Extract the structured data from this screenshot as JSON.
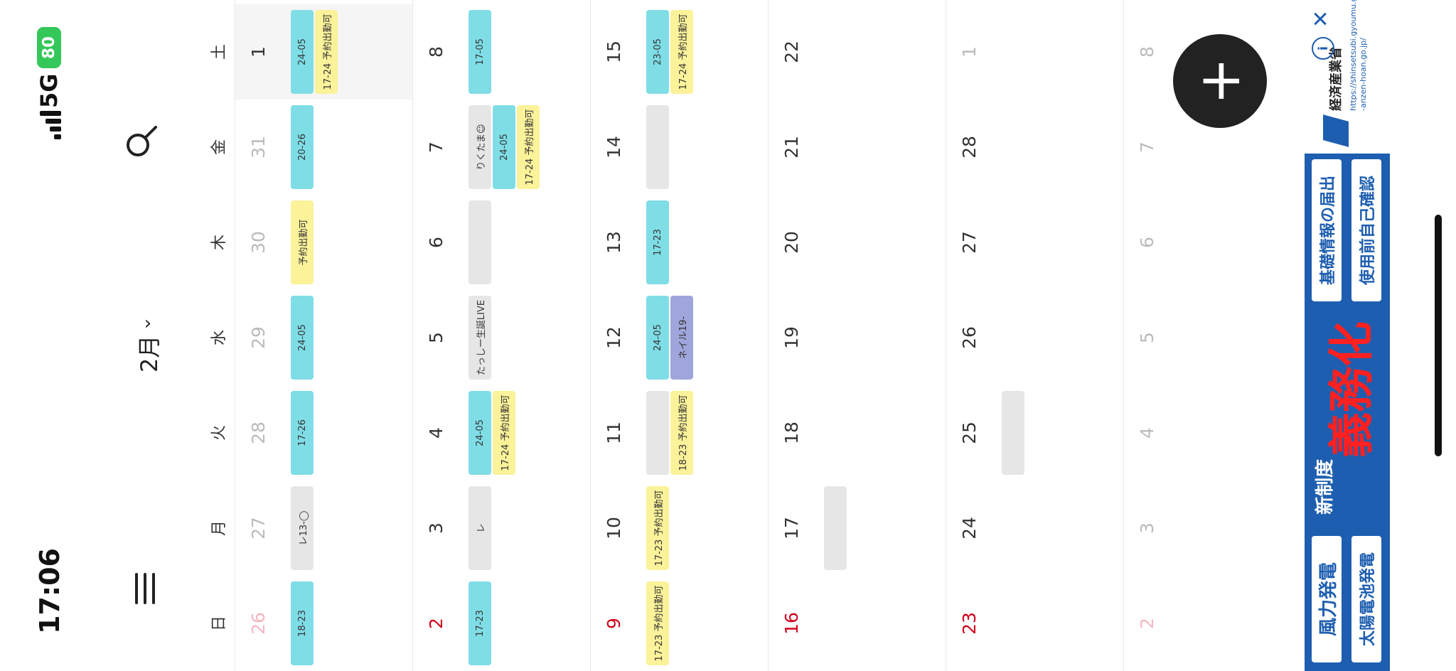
{
  "status": {
    "time": "17:06",
    "network": "5G",
    "battery": "80"
  },
  "header": {
    "month": "2月",
    "chevron": "›"
  },
  "weekdays": [
    "日",
    "月",
    "火",
    "水",
    "木",
    "金",
    "土"
  ],
  "weeks": [
    {
      "days": [
        {
          "d": "26",
          "faded": true,
          "sun": true,
          "events": [
            {
              "t": "18-23",
              "c": "cyan"
            }
          ]
        },
        {
          "d": "27",
          "faded": true,
          "events": [
            {
              "t": "レ13-◯",
              "c": "gray"
            }
          ]
        },
        {
          "d": "28",
          "faded": true,
          "events": [
            {
              "t": "17-26",
              "c": "cyan"
            }
          ]
        },
        {
          "d": "29",
          "faded": true,
          "events": [
            {
              "t": "24-05",
              "c": "cyan"
            }
          ]
        },
        {
          "d": "30",
          "faded": true,
          "events": [
            {
              "t": "予約出勤可",
              "c": "yellow"
            }
          ]
        },
        {
          "d": "31",
          "faded": true,
          "events": [
            {
              "t": "20-26",
              "c": "cyan"
            }
          ]
        },
        {
          "d": "1",
          "selected": true,
          "events": [
            {
              "t": "24-05",
              "c": "cyan"
            },
            {
              "t": "17-24 予約出勤可",
              "c": "yellow"
            }
          ]
        }
      ]
    },
    {
      "days": [
        {
          "d": "2",
          "sun": true,
          "events": [
            {
              "t": "17-23",
              "c": "cyan"
            }
          ]
        },
        {
          "d": "3",
          "events": [
            {
              "t": "レ",
              "c": "gray"
            }
          ]
        },
        {
          "d": "4",
          "events": [
            {
              "t": "24-05",
              "c": "cyan"
            },
            {
              "t": "17-24 予約出勤可",
              "c": "yellow"
            }
          ]
        },
        {
          "d": "5",
          "events": [
            {
              "t": "たっしー生誕LIVE",
              "c": "gray"
            }
          ]
        },
        {
          "d": "6",
          "events": [
            {
              "t": "",
              "c": "gray"
            }
          ]
        },
        {
          "d": "7",
          "events": [
            {
              "t": "りくたま☺",
              "c": "gray"
            },
            {
              "t": "24-05",
              "c": "cyan"
            },
            {
              "t": "17-24 予約出勤可",
              "c": "yellow"
            }
          ]
        },
        {
          "d": "8",
          "events": [
            {
              "t": "17-05",
              "c": "cyan"
            }
          ]
        }
      ]
    },
    {
      "days": [
        {
          "d": "9",
          "sun": true,
          "events": [
            {
              "t": "17-23 予約出勤可",
              "c": "yellow"
            }
          ]
        },
        {
          "d": "10",
          "events": [
            {
              "t": "17-23 予約出勤可",
              "c": "yellow"
            }
          ]
        },
        {
          "d": "11",
          "events": [
            {
              "t": "",
              "c": "gray"
            },
            {
              "t": "18-23 予約出勤可",
              "c": "yellow"
            }
          ]
        },
        {
          "d": "12",
          "events": [
            {
              "t": "24-05",
              "c": "cyan"
            },
            {
              "t": "ネイル19-",
              "c": "purple"
            }
          ]
        },
        {
          "d": "13",
          "events": [
            {
              "t": "17-23",
              "c": "cyan"
            }
          ]
        },
        {
          "d": "14",
          "events": [
            {
              "t": "",
              "c": "gray"
            }
          ]
        },
        {
          "d": "15",
          "events": [
            {
              "t": "23-05",
              "c": "cyan"
            },
            {
              "t": "17-24 予約出勤可",
              "c": "yellow"
            }
          ]
        }
      ]
    },
    {
      "days": [
        {
          "d": "16",
          "sun": true,
          "events": []
        },
        {
          "d": "17",
          "events": [
            {
              "t": "",
              "c": "gray"
            }
          ]
        },
        {
          "d": "18",
          "events": []
        },
        {
          "d": "19",
          "events": []
        },
        {
          "d": "20",
          "events": []
        },
        {
          "d": "21",
          "events": []
        },
        {
          "d": "22",
          "events": []
        }
      ]
    },
    {
      "days": [
        {
          "d": "23",
          "sun": true,
          "events": []
        },
        {
          "d": "24",
          "events": []
        },
        {
          "d": "25",
          "events": [
            {
              "t": "",
              "c": "gray"
            }
          ]
        },
        {
          "d": "26",
          "events": []
        },
        {
          "d": "27",
          "events": []
        },
        {
          "d": "28",
          "events": []
        },
        {
          "d": "1",
          "faded": true,
          "events": []
        }
      ]
    },
    {
      "days": [
        {
          "d": "2",
          "faded": true,
          "sun": true,
          "events": []
        },
        {
          "d": "3",
          "faded": true,
          "events": []
        },
        {
          "d": "4",
          "faded": true,
          "events": []
        },
        {
          "d": "5",
          "faded": true,
          "events": []
        },
        {
          "d": "6",
          "faded": true,
          "events": []
        },
        {
          "d": "7",
          "faded": true,
          "events": []
        },
        {
          "d": "8",
          "faded": true,
          "events": []
        }
      ]
    }
  ],
  "fab": {
    "label": "+"
  },
  "ad": {
    "badge1": "風力発電",
    "badge2": "太陽電池発電",
    "new_system": "新制度",
    "headline": "義務化",
    "badge3": "基礎情報の届出",
    "badge4": "使用前自己確認",
    "ministry": "経済産業省",
    "url": "https://shinsetsubi.gyoumu.go.jp/  -anzen-hoan.go.jp/",
    "info": "i",
    "close": "✕"
  },
  "colors": {
    "cyan": "#7fdde6",
    "yellow": "#fbf29a",
    "gray": "#e6e6e6",
    "purple": "#9ea6dc",
    "sunday": "#d0021b",
    "fab": "#222222"
  },
  "icons": {
    "menu": "menu-icon",
    "search": "search-icon",
    "chevron": "chevron-down-icon",
    "add": "plus-icon"
  }
}
